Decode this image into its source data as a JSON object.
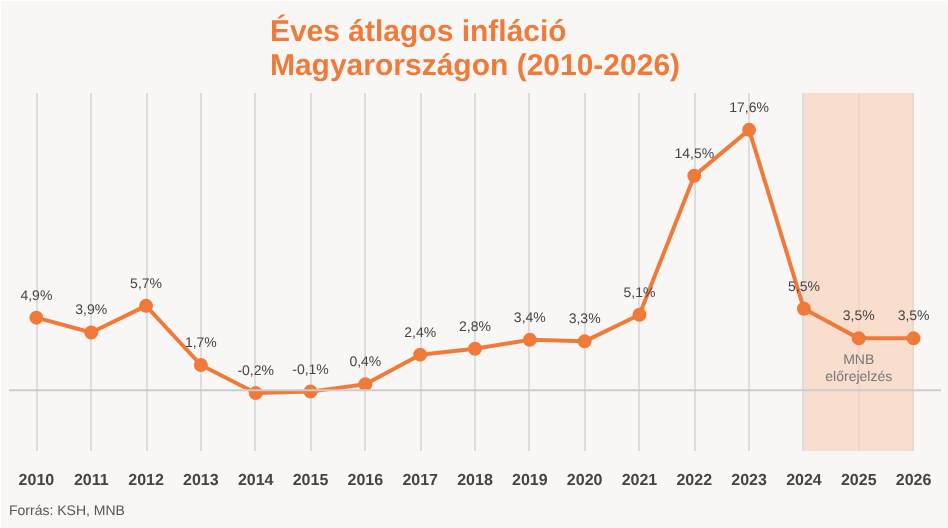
{
  "chart_data": {
    "type": "line",
    "title": "Éves átlagos infláció\nMagyarországon (2010-2026)",
    "categories": [
      "2010",
      "2011",
      "2012",
      "2013",
      "2014",
      "2015",
      "2016",
      "2017",
      "2018",
      "2019",
      "2020",
      "2021",
      "2022",
      "2023",
      "2024",
      "2025",
      "2026"
    ],
    "series": [
      {
        "color": "#f07a3a",
        "values": [
          4.9,
          3.9,
          5.7,
          1.7,
          -0.2,
          -0.1,
          0.4,
          2.4,
          2.8,
          3.4,
          3.3,
          5.1,
          14.5,
          17.6,
          5.5,
          3.5,
          3.5
        ],
        "value_labels": [
          "4,9%",
          "3,9%",
          "5,7%",
          "1,7%",
          "-0,2%",
          "-0,1%",
          "0,4%",
          "2,4%",
          "2,8%",
          "3,4%",
          "3,3%",
          "5,1%",
          "14,5%",
          "17,6%",
          "5,5%",
          "3,5%",
          "3,5%"
        ]
      }
    ],
    "bands": [
      {
        "axis": "x",
        "from": "2024",
        "to": "2026",
        "label": "MNB előrejelzés",
        "color": "#f9d3bd"
      }
    ],
    "annotations": [
      "Forrás: KSH, MNB"
    ],
    "grid": "x",
    "marker": "circle",
    "line_style": "solid"
  }
}
